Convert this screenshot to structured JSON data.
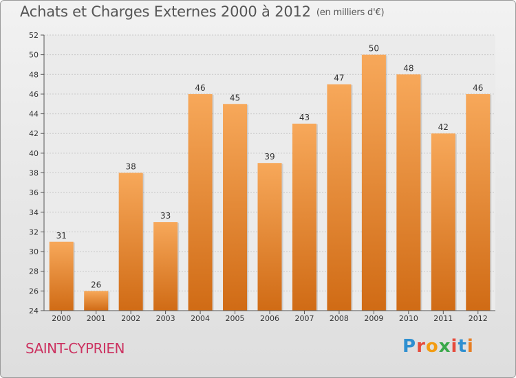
{
  "title": "Achats et Charges Externes 2000 à 2012",
  "subtitle": "(en milliers d'€)",
  "commune": "SAINT-CYPRIEN",
  "logo": {
    "letters": [
      "P",
      "r",
      "o",
      "x",
      "i",
      "t",
      "i"
    ],
    "colors": [
      "#2e8fd0",
      "#e64b3c",
      "#f39c12",
      "#3aa84a",
      "#e64b3c",
      "#2e8fd0",
      "#e67e22"
    ]
  },
  "colors": {
    "bar_light": "#f7a85a",
    "bar_dark": "#d06b15",
    "grid": "#c8c8c8",
    "axis": "#555555"
  },
  "chart_data": {
    "type": "bar",
    "categories": [
      "2000",
      "2001",
      "2002",
      "2003",
      "2004",
      "2005",
      "2006",
      "2007",
      "2008",
      "2009",
      "2010",
      "2011",
      "2012"
    ],
    "values": [
      31,
      26,
      38,
      33,
      46,
      45,
      39,
      43,
      47,
      50,
      48,
      42,
      46
    ],
    "ylim": [
      24,
      52
    ],
    "yticks": [
      24,
      26,
      28,
      30,
      32,
      34,
      36,
      38,
      40,
      42,
      44,
      46,
      48,
      50,
      52
    ],
    "grid": true,
    "data_labels": true
  }
}
